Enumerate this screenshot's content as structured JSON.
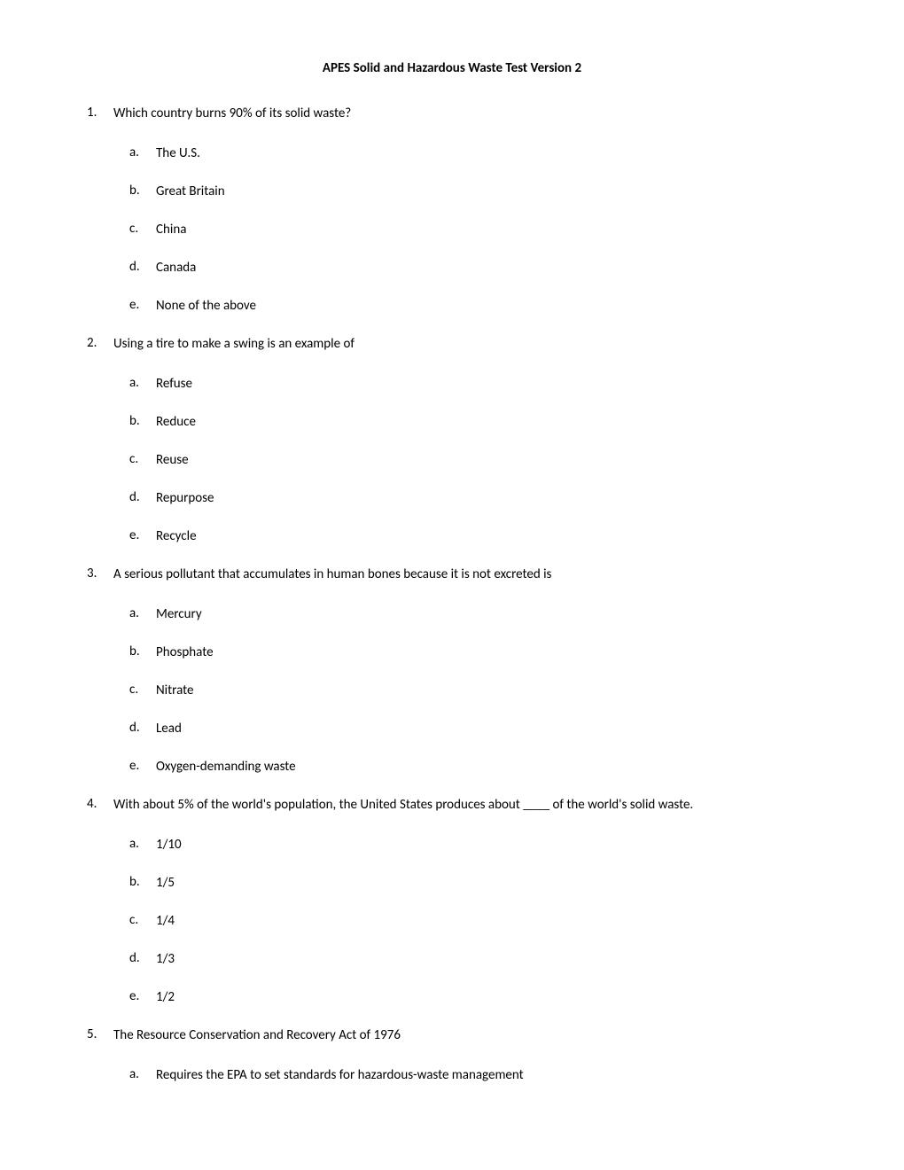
{
  "title": "APES Solid and Hazardous Waste Test Version 2",
  "questions": [
    {
      "number": "1.",
      "text": "Which country burns 90% of its solid waste?",
      "options": [
        {
          "letter": "a.",
          "text": "The U.S."
        },
        {
          "letter": "b.",
          "text": "Great Britain"
        },
        {
          "letter": "c.",
          "text": "China"
        },
        {
          "letter": "d.",
          "text": "Canada"
        },
        {
          "letter": "e.",
          "text": "None of the above"
        }
      ]
    },
    {
      "number": "2.",
      "text": "Using a tire to make a swing is an example of",
      "options": [
        {
          "letter": "a.",
          "text": "Refuse"
        },
        {
          "letter": "b.",
          "text": "Reduce"
        },
        {
          "letter": "c.",
          "text": "Reuse"
        },
        {
          "letter": "d.",
          "text": "Repurpose"
        },
        {
          "letter": "e.",
          "text": "Recycle"
        }
      ]
    },
    {
      "number": "3.",
      "text": "A serious pollutant that accumulates in human bones because it is not excreted is",
      "options": [
        {
          "letter": "a.",
          "text": "Mercury"
        },
        {
          "letter": "b.",
          "text": "Phosphate"
        },
        {
          "letter": "c.",
          "text": "Nitrate"
        },
        {
          "letter": "d.",
          "text": "Lead"
        },
        {
          "letter": "e.",
          "text": "Oxygen-demanding waste"
        }
      ]
    },
    {
      "number": "4.",
      "text": "With about 5% of the world's population, the United States produces about ____ of the world's solid waste.",
      "options": [
        {
          "letter": "a.",
          "text": "1/10"
        },
        {
          "letter": "b.",
          "text": "1/5"
        },
        {
          "letter": "c.",
          "text": "1/4"
        },
        {
          "letter": "d.",
          "text": "1/3"
        },
        {
          "letter": "e.",
          "text": "1/2"
        }
      ]
    },
    {
      "number": "5.",
      "text": "The Resource Conservation and Recovery Act of 1976",
      "options": [
        {
          "letter": "a.",
          "text": "Requires the EPA to set standards for hazardous-waste management"
        }
      ]
    }
  ]
}
